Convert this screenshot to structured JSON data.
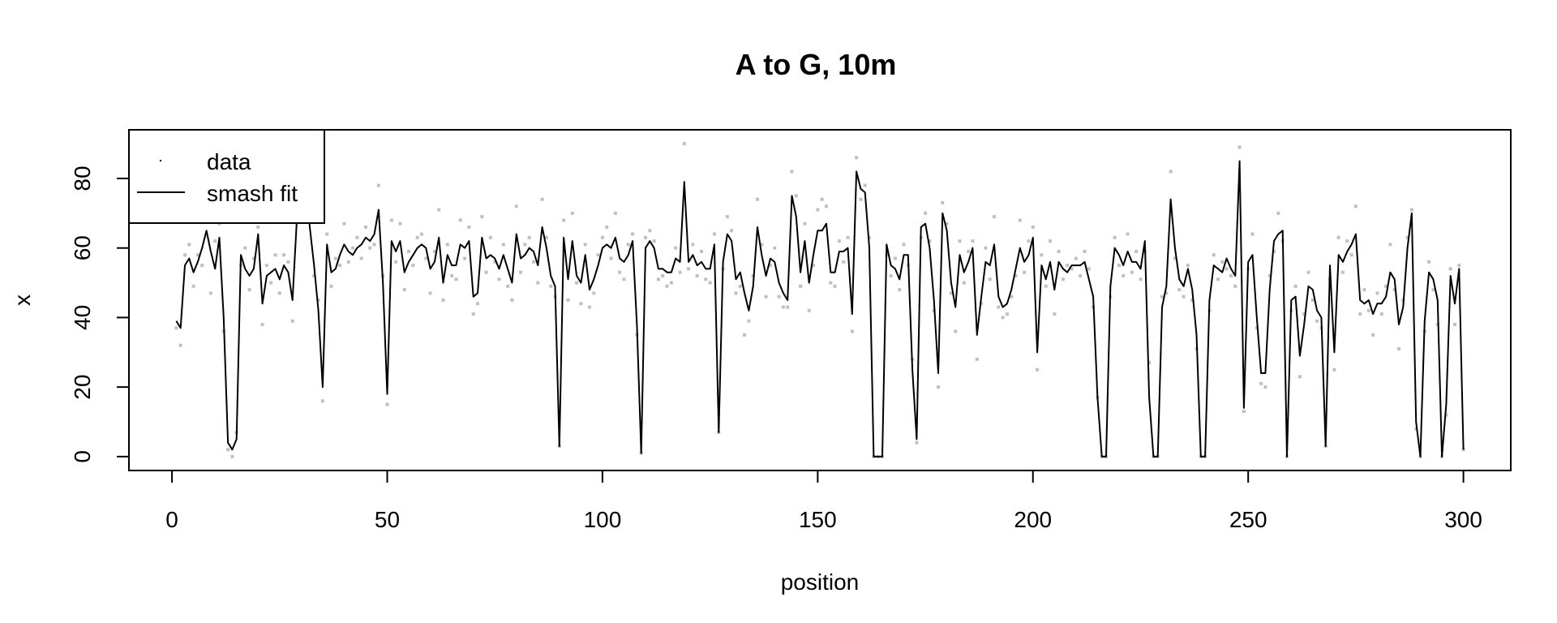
{
  "chart_data": {
    "type": "line",
    "title": "A to G, 10m",
    "xlabel": "position",
    "ylabel": "x",
    "xlim": [
      -10,
      311
    ],
    "ylim": [
      -4,
      94
    ],
    "x_ticks": [
      0,
      50,
      100,
      150,
      200,
      250,
      300
    ],
    "y_ticks": [
      0,
      20,
      40,
      60,
      80
    ],
    "grid": false,
    "legend": {
      "position": "top-left",
      "entries": [
        {
          "label": "data",
          "style": "point"
        },
        {
          "label": "smash fit",
          "style": "line"
        }
      ]
    },
    "colors": {
      "fit_line": "#000000",
      "data_points": "#c0c0c0"
    },
    "series": [
      {
        "name": "smash fit",
        "style": "line",
        "x": [
          1,
          2,
          3,
          4,
          5,
          6,
          7,
          8,
          9,
          10,
          11,
          12,
          13,
          14,
          15,
          16,
          17,
          18,
          19,
          20,
          21,
          22,
          23,
          24,
          25,
          26,
          27,
          28,
          29,
          30,
          31,
          32,
          33,
          34,
          35,
          36,
          37,
          38,
          39,
          40,
          41,
          42,
          43,
          44,
          45,
          46,
          47,
          48,
          49,
          50,
          51,
          52,
          53,
          54,
          55,
          56,
          57,
          58,
          59,
          60,
          61,
          62,
          63,
          64,
          65,
          66,
          67,
          68,
          69,
          70,
          71,
          72,
          73,
          74,
          75,
          76,
          77,
          78,
          79,
          80,
          81,
          82,
          83,
          84,
          85,
          86,
          87,
          88,
          89,
          90,
          91,
          92,
          93,
          94,
          95,
          96,
          97,
          98,
          99,
          100,
          101,
          102,
          103,
          104,
          105,
          106,
          107,
          108,
          109,
          110,
          111,
          112,
          113,
          114,
          115,
          116,
          117,
          118,
          119,
          120,
          121,
          122,
          123,
          124,
          125,
          126,
          127,
          128,
          129,
          130,
          131,
          132,
          133,
          134,
          135,
          136,
          137,
          138,
          139,
          140,
          141,
          142,
          143,
          144,
          145,
          146,
          147,
          148,
          149,
          150,
          151,
          152,
          153,
          154,
          155,
          156,
          157,
          158,
          159,
          160,
          161,
          162,
          163,
          164,
          165,
          166,
          167,
          168,
          169,
          170,
          171,
          172,
          173,
          174,
          175,
          176,
          177,
          178,
          179,
          180,
          181,
          182,
          183,
          184,
          185,
          186,
          187,
          188,
          189,
          190,
          191,
          192,
          193,
          194,
          195,
          196,
          197,
          198,
          199,
          200,
          201,
          202,
          203,
          204,
          205,
          206,
          207,
          208,
          209,
          210,
          211,
          212,
          213,
          214,
          215,
          216,
          217,
          218,
          219,
          220,
          221,
          222,
          223,
          224,
          225,
          226,
          227,
          228,
          229,
          230,
          231,
          232,
          233,
          234,
          235,
          236,
          237,
          238,
          239,
          240,
          241,
          242,
          243,
          244,
          245,
          246,
          247,
          248,
          249,
          250,
          251,
          252,
          253,
          254,
          255,
          256,
          257,
          258,
          259,
          260,
          261,
          262,
          263,
          264,
          265,
          266,
          267,
          268,
          269,
          270,
          271,
          272,
          273,
          274,
          275,
          276,
          277,
          278,
          279,
          280,
          281,
          282,
          283,
          284,
          285,
          286,
          287,
          288,
          289,
          290,
          291,
          292,
          293,
          294,
          295,
          296,
          297,
          298,
          299,
          300
        ],
        "values": [
          39,
          37,
          55,
          57,
          53,
          56,
          60,
          65,
          59,
          54,
          63,
          40,
          4,
          2,
          5,
          58,
          54,
          52,
          54,
          64,
          44,
          52,
          53,
          54,
          51,
          55,
          53,
          45,
          68,
          81,
          82,
          66,
          55,
          42,
          20,
          61,
          53,
          54,
          58,
          61,
          59,
          58,
          60,
          61,
          63,
          62,
          64,
          71,
          50,
          18,
          62,
          59,
          62,
          53,
          56,
          58,
          60,
          61,
          60,
          54,
          56,
          63,
          50,
          58,
          55,
          55,
          61,
          60,
          62,
          46,
          47,
          63,
          57,
          58,
          57,
          54,
          58,
          54,
          50,
          64,
          57,
          58,
          60,
          59,
          55,
          66,
          60,
          52,
          49,
          3,
          63,
          51,
          62,
          52,
          50,
          58,
          48,
          51,
          55,
          60,
          61,
          60,
          63,
          57,
          56,
          58,
          62,
          38,
          1,
          60,
          62,
          60,
          54,
          54,
          53,
          53,
          57,
          56,
          79,
          56,
          58,
          55,
          56,
          54,
          54,
          61,
          7,
          56,
          64,
          62,
          51,
          53,
          47,
          42,
          49,
          66,
          58,
          52,
          57,
          56,
          50,
          47,
          45,
          75,
          69,
          53,
          62,
          50,
          58,
          65,
          65,
          67,
          53,
          53,
          59,
          59,
          60,
          41,
          82,
          77,
          76,
          60,
          0,
          0,
          0,
          61,
          55,
          54,
          51,
          58,
          58,
          25,
          5,
          66,
          67,
          60,
          45,
          24,
          70,
          65,
          50,
          43,
          58,
          53,
          56,
          60,
          35,
          46,
          56,
          55,
          61,
          46,
          43,
          44,
          48,
          54,
          60,
          56,
          58,
          63,
          30,
          55,
          51,
          56,
          48,
          56,
          54,
          53,
          55,
          55,
          55,
          56,
          51,
          46,
          17,
          0,
          0,
          49,
          60,
          58,
          55,
          59,
          56,
          56,
          54,
          62,
          17,
          0,
          0,
          43,
          49,
          74,
          60,
          51,
          49,
          54,
          48,
          35,
          0,
          0,
          45,
          55,
          54,
          53,
          57,
          54,
          52,
          85,
          14,
          56,
          58,
          40,
          24,
          24,
          48,
          62,
          64,
          65,
          0,
          45,
          46,
          29,
          38,
          49,
          48,
          42,
          40,
          3,
          55,
          30,
          58,
          56,
          59,
          61,
          64,
          45,
          44,
          45,
          41,
          44,
          44,
          46,
          53,
          51,
          38,
          43,
          60,
          70,
          10,
          0,
          39,
          53,
          51,
          45,
          0,
          15,
          52,
          44,
          54,
          2
        ]
      },
      {
        "name": "data",
        "style": "point",
        "x": [
          1,
          2,
          3,
          4,
          5,
          6,
          7,
          8,
          9,
          10,
          11,
          12,
          13,
          14,
          15,
          16,
          17,
          18,
          19,
          20,
          21,
          22,
          23,
          24,
          25,
          26,
          27,
          28,
          29,
          30,
          31,
          32,
          33,
          34,
          35,
          36,
          37,
          38,
          39,
          40,
          41,
          42,
          43,
          44,
          45,
          46,
          47,
          48,
          49,
          50,
          51,
          52,
          53,
          54,
          55,
          56,
          57,
          58,
          59,
          60,
          61,
          62,
          63,
          64,
          65,
          66,
          67,
          68,
          69,
          70,
          71,
          72,
          73,
          74,
          75,
          76,
          77,
          78,
          79,
          80,
          81,
          82,
          83,
          84,
          85,
          86,
          87,
          88,
          89,
          90,
          91,
          92,
          93,
          94,
          95,
          96,
          97,
          98,
          99,
          100,
          101,
          102,
          103,
          104,
          105,
          106,
          107,
          108,
          109,
          110,
          111,
          112,
          113,
          114,
          115,
          116,
          117,
          118,
          119,
          120,
          121,
          122,
          123,
          124,
          125,
          126,
          127,
          128,
          129,
          130,
          131,
          132,
          133,
          134,
          135,
          136,
          137,
          138,
          139,
          140,
          141,
          142,
          143,
          144,
          145,
          146,
          147,
          148,
          149,
          150,
          151,
          152,
          153,
          154,
          155,
          156,
          157,
          158,
          159,
          160,
          161,
          162,
          163,
          164,
          165,
          166,
          167,
          168,
          169,
          170,
          171,
          172,
          173,
          174,
          175,
          176,
          177,
          178,
          179,
          180,
          181,
          182,
          183,
          184,
          185,
          186,
          187,
          188,
          189,
          190,
          191,
          192,
          193,
          194,
          195,
          196,
          197,
          198,
          199,
          200,
          201,
          202,
          203,
          204,
          205,
          206,
          207,
          208,
          209,
          210,
          211,
          212,
          213,
          214,
          215,
          216,
          217,
          218,
          219,
          220,
          221,
          222,
          223,
          224,
          225,
          226,
          227,
          228,
          229,
          230,
          231,
          232,
          233,
          234,
          235,
          236,
          237,
          238,
          239,
          240,
          241,
          242,
          243,
          244,
          245,
          246,
          247,
          248,
          249,
          250,
          251,
          252,
          253,
          254,
          255,
          256,
          257,
          258,
          259,
          260,
          261,
          262,
          263,
          264,
          265,
          266,
          267,
          268,
          269,
          270,
          271,
          272,
          273,
          274,
          275,
          276,
          277,
          278,
          279,
          280,
          281,
          282,
          283,
          284,
          285,
          286,
          287,
          288,
          289,
          290,
          291,
          292,
          293,
          294,
          295,
          296,
          297,
          298,
          299,
          300
        ],
        "values": [
          37,
          32,
          58,
          61,
          49,
          58,
          55,
          68,
          47,
          62,
          67,
          36,
          2,
          0,
          7,
          55,
          60,
          48,
          57,
          66,
          38,
          55,
          50,
          58,
          47,
          58,
          56,
          39,
          72,
          79,
          86,
          70,
          52,
          45,
          16,
          64,
          49,
          57,
          55,
          67,
          56,
          60,
          63,
          57,
          66,
          60,
          61,
          78,
          52,
          15,
          68,
          56,
          67,
          48,
          59,
          55,
          63,
          64,
          57,
          47,
          59,
          71,
          45,
          61,
          52,
          51,
          68,
          57,
          66,
          41,
          44,
          69,
          53,
          63,
          56,
          51,
          61,
          49,
          45,
          72,
          53,
          61,
          63,
          56,
          50,
          74,
          63,
          49,
          46,
          3,
          68,
          45,
          70,
          50,
          44,
          61,
          43,
          47,
          58,
          63,
          66,
          57,
          70,
          53,
          51,
          61,
          64,
          35,
          1,
          63,
          65,
          62,
          51,
          52,
          49,
          50,
          60,
          53,
          90,
          54,
          61,
          52,
          59,
          51,
          50,
          64,
          7,
          54,
          69,
          65,
          47,
          49,
          35,
          39,
          52,
          74,
          61,
          46,
          55,
          60,
          46,
          43,
          43,
          82,
          75,
          49,
          67,
          42,
          55,
          71,
          74,
          72,
          50,
          49,
          62,
          56,
          63,
          36,
          86,
          74,
          78,
          63,
          0,
          0,
          0,
          58,
          52,
          57,
          48,
          61,
          55,
          28,
          4,
          63,
          70,
          62,
          42,
          20,
          73,
          67,
          47,
          36,
          62,
          50,
          59,
          62,
          28,
          44,
          60,
          51,
          69,
          43,
          40,
          41,
          46,
          52,
          68,
          53,
          62,
          66,
          25,
          58,
          49,
          62,
          41,
          59,
          51,
          55,
          54,
          57,
          52,
          59,
          54,
          43,
          17,
          0,
          0,
          46,
          63,
          55,
          52,
          64,
          53,
          59,
          51,
          59,
          27,
          0,
          0,
          46,
          47,
          82,
          57,
          48,
          46,
          55,
          45,
          31,
          0,
          0,
          42,
          58,
          51,
          56,
          54,
          52,
          49,
          89,
          13,
          54,
          64,
          37,
          21,
          20,
          52,
          59,
          70,
          62,
          0,
          42,
          49,
          23,
          41,
          53,
          45,
          39,
          37,
          3,
          51,
          25,
          63,
          53,
          62,
          58,
          72,
          41,
          48,
          42,
          35,
          47,
          41,
          49,
          61,
          48,
          31,
          45,
          63,
          71,
          8,
          0,
          36,
          56,
          48,
          38,
          0,
          12,
          54,
          38,
          55,
          2
        ]
      }
    ]
  }
}
